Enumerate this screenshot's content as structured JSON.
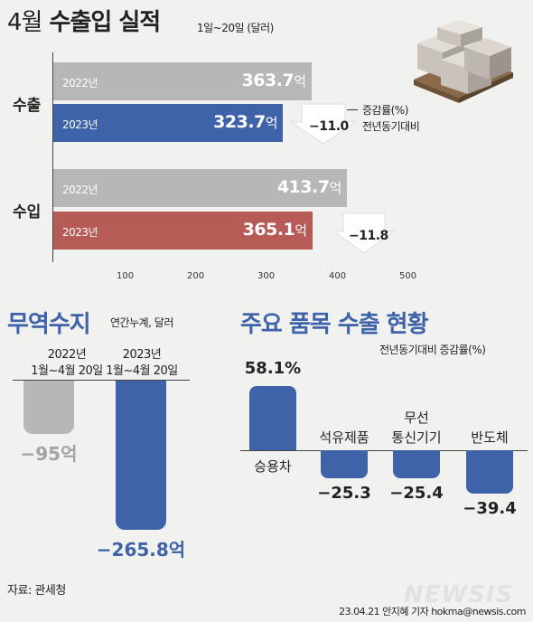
{
  "header": {
    "title_part1": "4월",
    "title_part2": "수출입 실적",
    "subtitle": "1일~20일 (달러)"
  },
  "top_chart": {
    "rows": [
      {
        "label": "수출",
        "bars": [
          {
            "year": "2022년",
            "value": 363.7,
            "value_text": "363.7",
            "unit": "억",
            "color": "#b7b7b7"
          },
          {
            "year": "2023년",
            "value": 323.7,
            "value_text": "323.7",
            "unit": "억",
            "color": "#3e63a8"
          }
        ],
        "change_text": "−11.0"
      },
      {
        "label": "수입",
        "bars": [
          {
            "year": "2022년",
            "value": 413.7,
            "value_text": "413.7",
            "unit": "억",
            "color": "#b7b7b7"
          },
          {
            "year": "2023년",
            "value": 365.1,
            "value_text": "365.1",
            "unit": "억",
            "color": "#b65b55"
          }
        ],
        "change_text": "−11.8"
      }
    ],
    "legend_line1": "증감률(%)",
    "legend_line2": "전년동기대비",
    "ticks": [
      "100",
      "200",
      "300",
      "400",
      "500"
    ]
  },
  "trade_balance": {
    "title": "무역수지",
    "subtitle": "연간누계, 달러",
    "bars": [
      {
        "label_line1": "2022년",
        "label_line2": "1월~4월 20일",
        "value": -95,
        "value_text": "−95억",
        "color": "#b7b7b7",
        "text_color": "#a3a3a3"
      },
      {
        "label_line1": "2023년",
        "label_line2": "1월~4월 20일",
        "value": -265.8,
        "value_text": "−265.8억",
        "color": "#3e63a8",
        "text_color": "#3e63a8"
      }
    ]
  },
  "main_items": {
    "title": "주요 품목 수출 현황",
    "subtitle": "전년동기대비 증감률(%)",
    "items": [
      {
        "name_line1": "승용차",
        "name_line2": "",
        "value": 58.1,
        "value_text": "58.1%"
      },
      {
        "name_line1": "석유제품",
        "name_line2": "",
        "value": -25.3,
        "value_text": "−25.3"
      },
      {
        "name_line1": "무선",
        "name_line2": "통신기기",
        "value": -25.4,
        "value_text": "−25.4"
      },
      {
        "name_line1": "반도체",
        "name_line2": "",
        "value": -39.4,
        "value_text": "−39.4"
      }
    ],
    "bar_color": "#3e63a8"
  },
  "footer": {
    "source": "자료: 관세청",
    "credit": "23.04.21 안지혜 기자 hokma@newsis.com",
    "logo": "NEWSIS"
  },
  "chart_data": [
    {
      "type": "bar",
      "title": "4월 수출입 실적",
      "subtitle": "1일~20일 (달러)",
      "orientation": "horizontal",
      "categories": [
        "수출",
        "수입"
      ],
      "series": [
        {
          "name": "2022년",
          "values": [
            363.7,
            413.7
          ]
        },
        {
          "name": "2023년",
          "values": [
            323.7,
            365.1
          ]
        }
      ],
      "changes": [
        -11.0,
        -11.8
      ],
      "xlim": [
        0,
        500
      ],
      "ticks": [
        100,
        200,
        300,
        400,
        500
      ]
    },
    {
      "type": "bar",
      "title": "무역수지",
      "subtitle": "연간누계, 달러",
      "categories": [
        "2022년 1월~4월 20일",
        "2023년 1월~4월 20일"
      ],
      "values": [
        -95,
        -265.8
      ]
    },
    {
      "type": "bar",
      "title": "주요 품목 수출 현황",
      "subtitle": "전년동기대비 증감률(%)",
      "categories": [
        "승용차",
        "석유제품",
        "무선 통신기기",
        "반도체"
      ],
      "values": [
        58.1,
        -25.3,
        -25.4,
        -39.4
      ]
    }
  ]
}
